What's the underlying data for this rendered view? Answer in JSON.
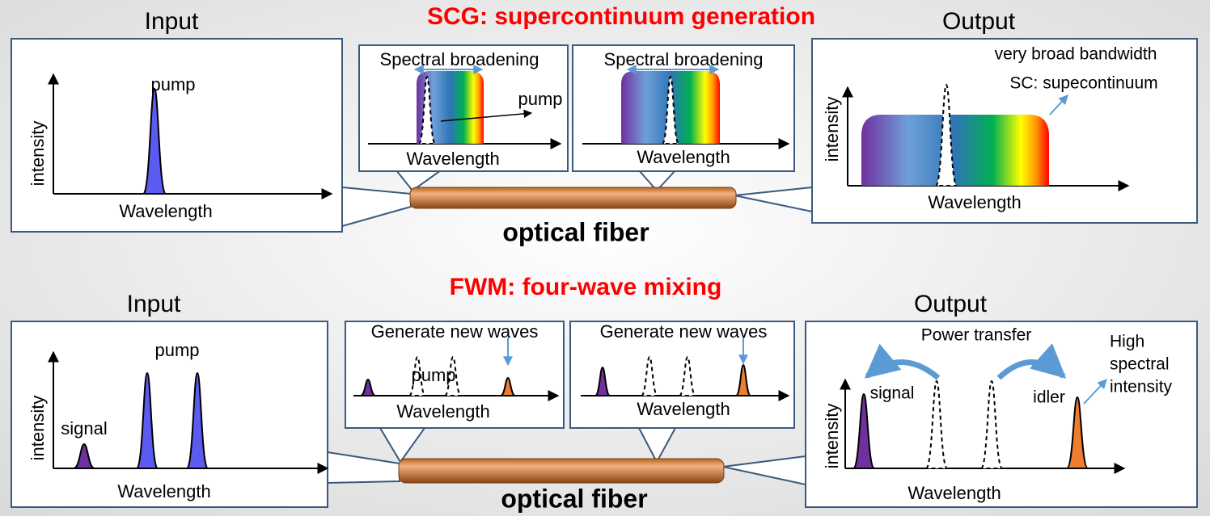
{
  "scg": {
    "title": "SCG: supercontinuum generation",
    "input": {
      "heading": "Input",
      "peak_label": "pump",
      "y_label": "intensity",
      "x_label": "Wavelength"
    },
    "stages": [
      {
        "title": "Spectral broadening",
        "peak_label": "pump",
        "x_label": "Wavelength"
      },
      {
        "title": "Spectral broadening",
        "x_label": "Wavelength"
      }
    ],
    "output": {
      "heading": "Output",
      "annotations": [
        "very broad bandwidth",
        "SC: supecontinuum"
      ],
      "y_label": "intensity",
      "x_label": "Wavelength"
    },
    "fiber_label": "optical fiber"
  },
  "fwm": {
    "title": "FWM: four-wave mixing",
    "input": {
      "heading": "Input",
      "pump_label": "pump",
      "signal_label": "signal",
      "y_label": "intensity",
      "x_label": "Wavelength"
    },
    "stages": [
      {
        "title": "Generate new waves",
        "pump_label": "pump",
        "x_label": "Wavelength"
      },
      {
        "title": "Generate new waves",
        "x_label": "Wavelength"
      }
    ],
    "output": {
      "heading": "Output",
      "transfer_label": "Power transfer",
      "note_lines": [
        "High",
        "spectral",
        "intensity"
      ],
      "signal_label": "signal",
      "idler_label": "idler",
      "y_label": "intensity",
      "x_label": "Wavelength"
    },
    "fiber_label": "optical fiber"
  }
}
